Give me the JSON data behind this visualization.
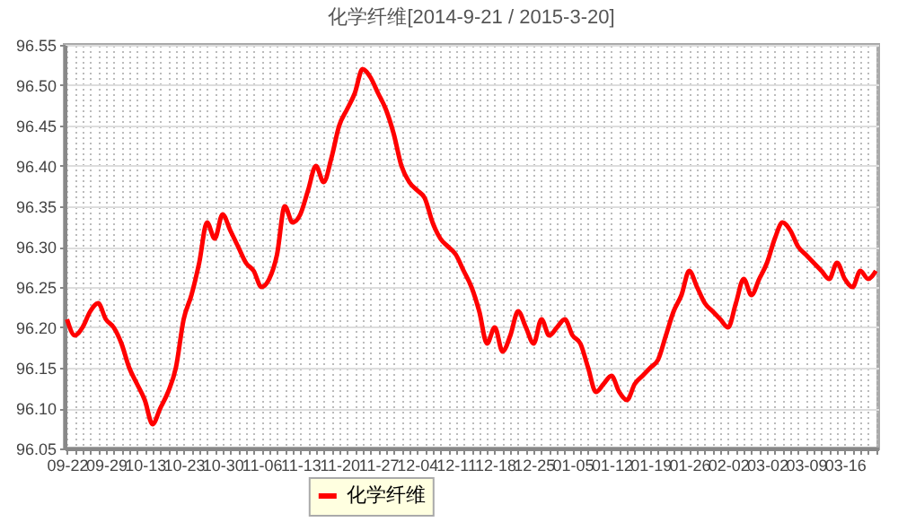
{
  "chart_data": {
    "type": "line",
    "title": "化学纤维[2014-9-21 / 2015-3-20]",
    "categories": [
      "09-22",
      null,
      null,
      null,
      null,
      "09-29",
      null,
      null,
      null,
      null,
      "10-13",
      null,
      null,
      null,
      null,
      "10-23",
      null,
      null,
      null,
      null,
      "10-30",
      null,
      null,
      null,
      null,
      "11-06",
      null,
      null,
      null,
      null,
      "11-13",
      null,
      null,
      null,
      null,
      "11-20",
      null,
      null,
      null,
      null,
      "11-27",
      null,
      null,
      null,
      null,
      "12-04",
      null,
      null,
      null,
      null,
      "12-11",
      null,
      null,
      null,
      null,
      "12-18",
      null,
      null,
      null,
      null,
      "12-25",
      null,
      null,
      null,
      null,
      "01-05",
      null,
      null,
      null,
      null,
      "01-12",
      null,
      null,
      null,
      null,
      "01-19",
      null,
      null,
      null,
      null,
      "01-26",
      null,
      null,
      null,
      null,
      "02-02",
      null,
      null,
      null,
      null,
      "03-02",
      null,
      null,
      null,
      null,
      "03-09",
      null,
      null,
      null,
      null,
      "03-16",
      null,
      null,
      null,
      null
    ],
    "series": [
      {
        "name": "化学纤维",
        "color": "#ff0000",
        "values": [
          96.21,
          96.19,
          96.2,
          96.22,
          96.23,
          96.21,
          96.2,
          96.18,
          96.15,
          96.13,
          96.11,
          96.08,
          96.1,
          96.12,
          96.15,
          96.21,
          96.24,
          96.28,
          96.33,
          96.31,
          96.34,
          96.32,
          96.3,
          96.28,
          96.27,
          96.25,
          96.26,
          96.29,
          96.35,
          96.33,
          96.34,
          96.37,
          96.4,
          96.38,
          96.41,
          96.45,
          96.47,
          96.49,
          96.52,
          96.51,
          96.49,
          96.47,
          96.44,
          96.4,
          96.38,
          96.37,
          96.36,
          96.33,
          96.31,
          96.3,
          96.29,
          96.27,
          96.25,
          96.22,
          96.18,
          96.2,
          96.17,
          96.19,
          96.22,
          96.2,
          96.18,
          96.21,
          96.19,
          96.2,
          96.21,
          96.19,
          96.18,
          96.15,
          96.12,
          96.13,
          96.14,
          96.12,
          96.11,
          96.13,
          96.14,
          96.15,
          96.16,
          96.19,
          96.22,
          96.24,
          96.27,
          96.25,
          96.23,
          96.22,
          96.21,
          96.2,
          96.23,
          96.26,
          96.24,
          96.26,
          96.28,
          96.31,
          96.33,
          96.32,
          96.3,
          96.29,
          96.28,
          96.27,
          96.26,
          96.28,
          96.26,
          96.25,
          96.27,
          96.26,
          96.27
        ]
      }
    ],
    "ylim": [
      96.05,
      96.55
    ],
    "yticks": [
      96.05,
      {
        "value": 96.1,
        "label": "96.10"
      },
      96.15,
      {
        "value": 96.2,
        "label": "96.20"
      },
      96.25,
      {
        "value": 96.3,
        "label": "96.30"
      },
      96.35,
      {
        "value": 96.4,
        "label": "96.40"
      },
      96.45,
      {
        "value": 96.5,
        "label": "96.50"
      },
      96.55
    ],
    "grid": true,
    "legend": "bottom",
    "marker": "none",
    "line_style": "solid"
  }
}
